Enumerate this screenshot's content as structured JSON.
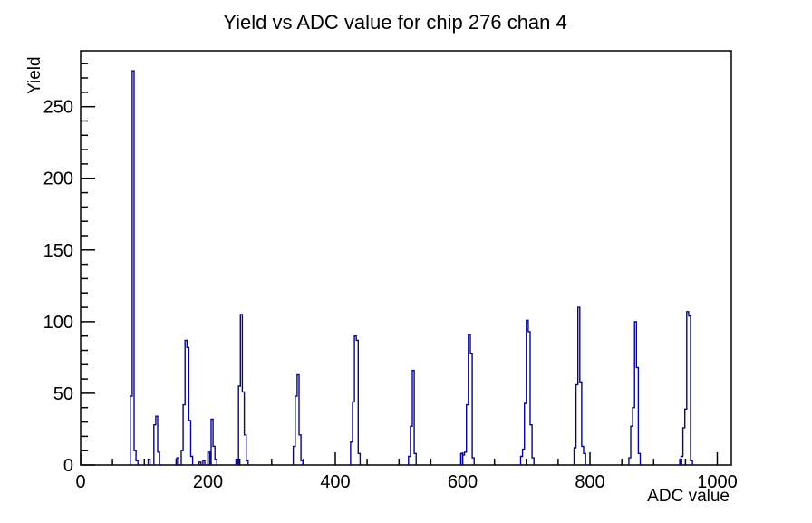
{
  "page": {
    "background": "#ffffff"
  },
  "header": {
    "title": "Yield vs ADC value for chip 276 chan 4"
  },
  "chart_data": {
    "type": "bar",
    "subtype": "root-style histogram of narrow spikes",
    "title": "Yield vs ADC value for chip 276 chan 4",
    "xlabel": "ADC value",
    "ylabel": "Yield",
    "xlim": [
      0,
      1022
    ],
    "ylim": [
      0,
      289
    ],
    "x_major_ticks": [
      0,
      200,
      400,
      600,
      800,
      1000
    ],
    "x_minor_step": 50,
    "y_major_ticks": [
      0,
      50,
      100,
      150,
      200,
      250
    ],
    "y_minor_step": 10,
    "grid": false,
    "legend": false,
    "bin_width_adc": 3,
    "line_color": "#05058f",
    "axis_color": "#000000",
    "clusters": [
      {
        "start_adc": 78,
        "bin_heights": [
          48,
          275,
          10,
          3
        ]
      },
      {
        "start_adc": 106,
        "bin_heights": [
          4
        ]
      },
      {
        "start_adc": 115,
        "bin_heights": [
          28,
          34,
          9
        ]
      },
      {
        "start_adc": 151,
        "bin_heights": [
          5
        ]
      },
      {
        "start_adc": 158,
        "bin_heights": [
          10,
          42,
          87,
          82,
          31,
          6
        ]
      },
      {
        "start_adc": 186,
        "bin_heights": [
          2
        ]
      },
      {
        "start_adc": 192,
        "bin_heights": [
          3
        ]
      },
      {
        "start_adc": 200,
        "bin_heights": [
          9
        ]
      },
      {
        "start_adc": 205,
        "bin_heights": [
          32,
          13,
          4
        ]
      },
      {
        "start_adc": 244,
        "bin_heights": [
          4
        ]
      },
      {
        "start_adc": 248,
        "bin_heights": [
          55,
          105,
          51,
          21,
          3
        ]
      },
      {
        "start_adc": 334,
        "bin_heights": [
          13,
          48,
          63,
          21,
          3
        ]
      },
      {
        "start_adc": 424,
        "bin_heights": [
          16,
          44,
          90,
          87,
          8
        ]
      },
      {
        "start_adc": 515,
        "bin_heights": [
          6,
          27,
          66,
          8
        ]
      },
      {
        "start_adc": 597,
        "bin_heights": [
          8
        ]
      },
      {
        "start_adc": 600,
        "bin_heights": [
          7,
          9,
          42,
          91,
          78,
          5
        ]
      },
      {
        "start_adc": 691,
        "bin_heights": [
          6,
          11,
          43,
          101,
          93,
          28,
          5
        ]
      },
      {
        "start_adc": 775,
        "bin_heights": [
          12,
          56,
          110,
          58,
          13,
          8
        ]
      },
      {
        "start_adc": 861,
        "bin_heights": [
          5,
          27,
          40,
          100,
          68,
          8
        ]
      },
      {
        "start_adc": 941,
        "bin_heights": [
          4
        ]
      },
      {
        "start_adc": 943,
        "bin_heights": [
          6,
          26,
          39,
          107,
          104,
          3
        ]
      }
    ]
  }
}
